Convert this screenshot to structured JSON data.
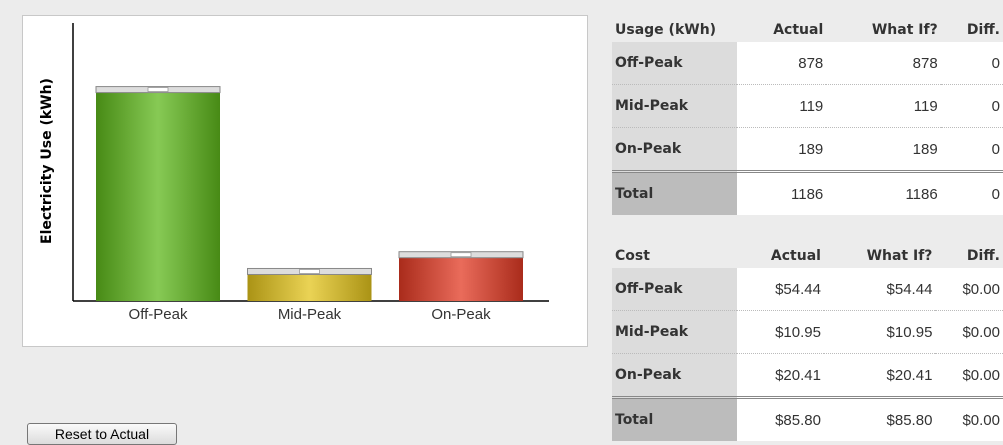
{
  "chart_data": {
    "type": "bar",
    "y_label": "Electricity Use (kWh)",
    "categories": [
      "Off-Peak",
      "Mid-Peak",
      "On-Peak"
    ],
    "values": [
      878,
      119,
      189
    ],
    "colors": [
      "#5fb81c",
      "#e3c41c",
      "#e23a24"
    ],
    "ylim": [
      0,
      1160
    ]
  },
  "usage_table": {
    "header": [
      "Usage (kWh)",
      "Actual",
      "What If?",
      "Diff."
    ],
    "rows": [
      [
        "Off-Peak",
        878,
        878,
        0
      ],
      [
        "Mid-Peak",
        119,
        119,
        0
      ],
      [
        "On-Peak",
        189,
        189,
        0
      ],
      [
        "Total",
        1186,
        1186,
        0
      ]
    ]
  },
  "cost_table": {
    "header": [
      "Cost",
      "Actual",
      "What If?",
      "Diff."
    ],
    "rows": [
      [
        "Off-Peak",
        "$54.44",
        "$54.44",
        "$0.00"
      ],
      [
        "Mid-Peak",
        "$10.95",
        "$10.95",
        "$0.00"
      ],
      [
        "On-Peak",
        "$20.41",
        "$20.41",
        "$0.00"
      ],
      [
        "Total",
        "$85.80",
        "$85.80",
        "$0.00"
      ]
    ]
  },
  "button": "Reset to Actual"
}
